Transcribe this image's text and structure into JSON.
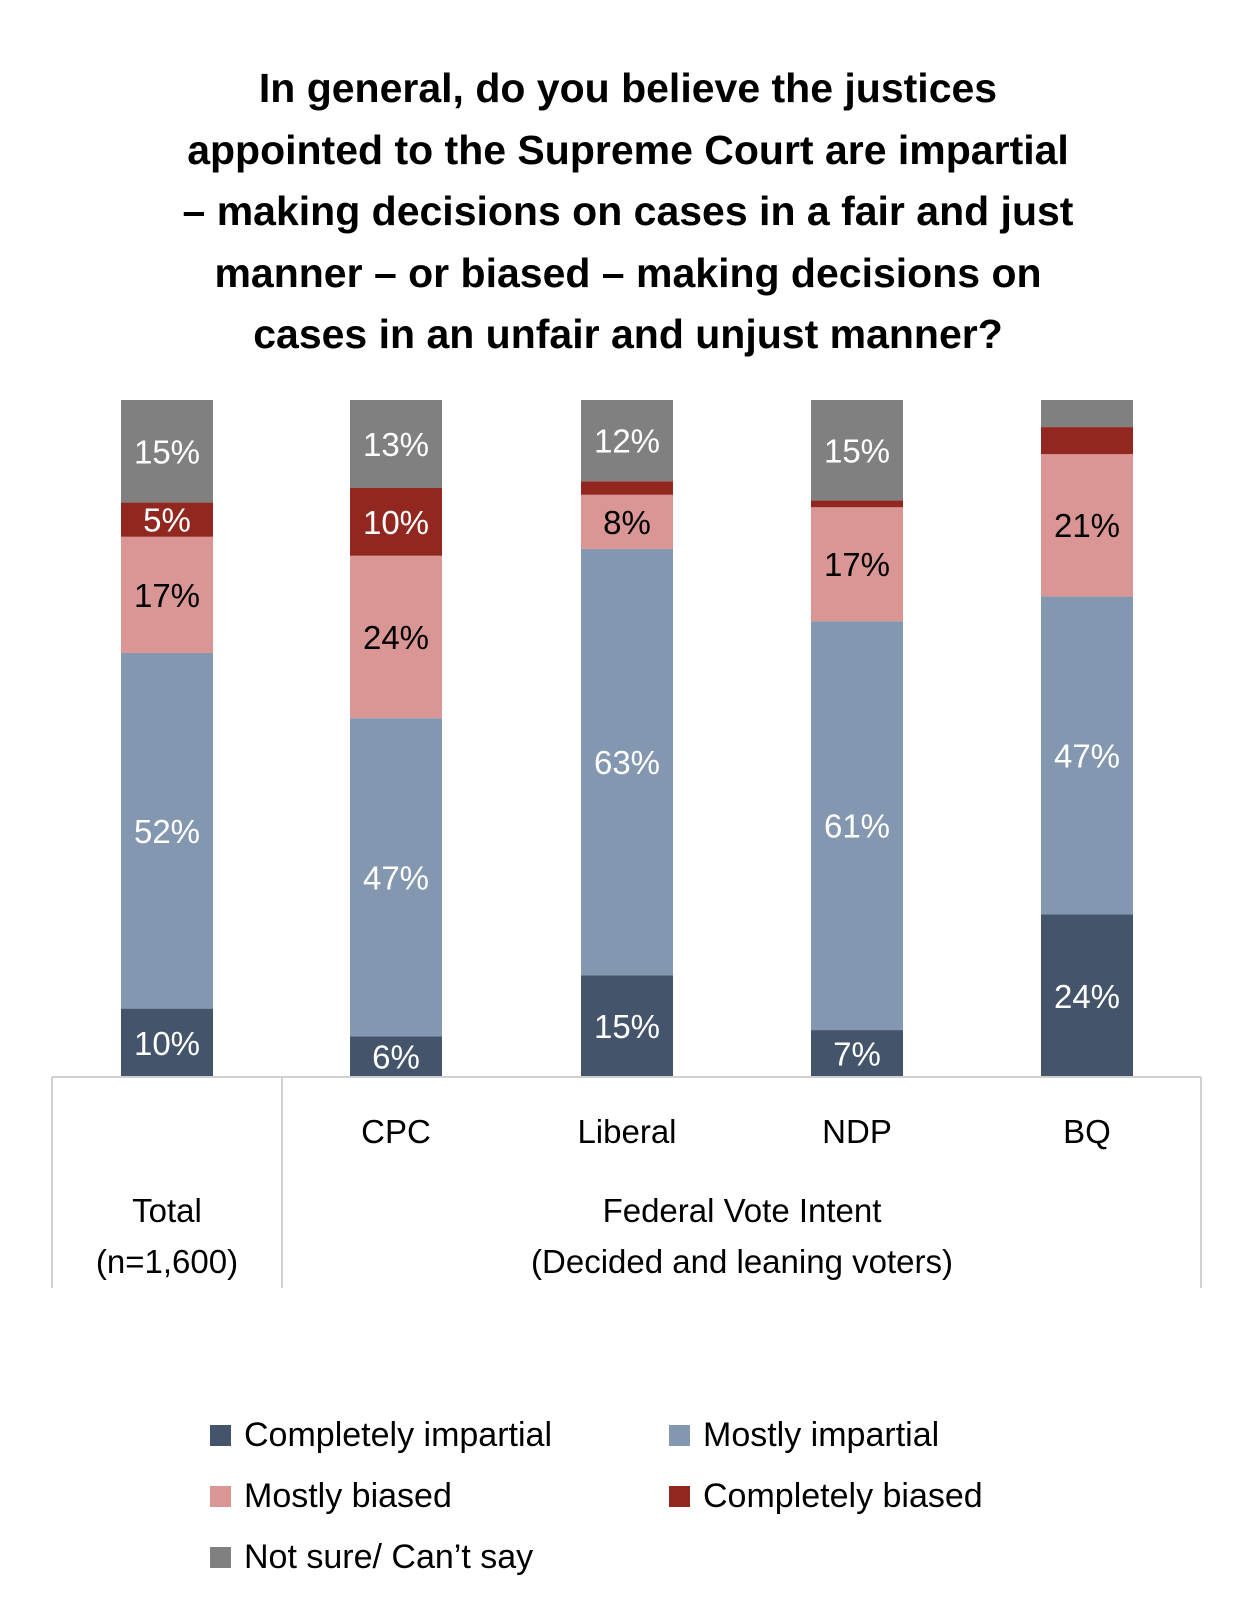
{
  "chart_data": {
    "type": "bar",
    "stacked": true,
    "orientation": "vertical",
    "title_lines": [
      "In general, do you believe the justices",
      "appointed to the Supreme Court are impartial",
      "– making decisions on cases in a fair and just",
      "manner – or biased – making decisions on",
      "cases in an unfair and unjust manner?"
    ],
    "categories": [
      "Total",
      "CPC",
      "Liberal",
      "NDP",
      "BQ"
    ],
    "category_groups": [
      {
        "label_lines": [
          "Total",
          "(n=1,600)"
        ],
        "categories": [
          "Total"
        ]
      },
      {
        "label_lines": [
          "Federal Vote Intent",
          "(Decided and leaning voters)"
        ],
        "categories": [
          "CPC",
          "Liberal",
          "NDP",
          "BQ"
        ]
      }
    ],
    "series": [
      {
        "name": "Completely impartial",
        "color": "#44546A",
        "label_color": "#FFFFFF",
        "values": [
          10,
          6,
          15,
          7,
          24
        ]
      },
      {
        "name": "Mostly impartial",
        "color": "#8497B0",
        "label_color": "#FFFFFF",
        "values": [
          52,
          47,
          63,
          61,
          47
        ]
      },
      {
        "name": "Mostly biased",
        "color": "#DA9694",
        "label_color": "#000000",
        "values": [
          17,
          24,
          8,
          17,
          21
        ]
      },
      {
        "name": "Completely biased",
        "color": "#922720",
        "label_color": "#FFFFFF",
        "values": [
          5,
          10,
          2,
          1,
          4
        ]
      },
      {
        "name": "Not sure/ Can’t say",
        "color": "#808080",
        "label_color": "#FFFFFF",
        "values": [
          15,
          13,
          12,
          15,
          4
        ]
      }
    ],
    "data_labels_min_value": 5,
    "value_suffix": "%",
    "legend_position": "bottom",
    "grid": false,
    "ylim": [
      0,
      100
    ]
  }
}
